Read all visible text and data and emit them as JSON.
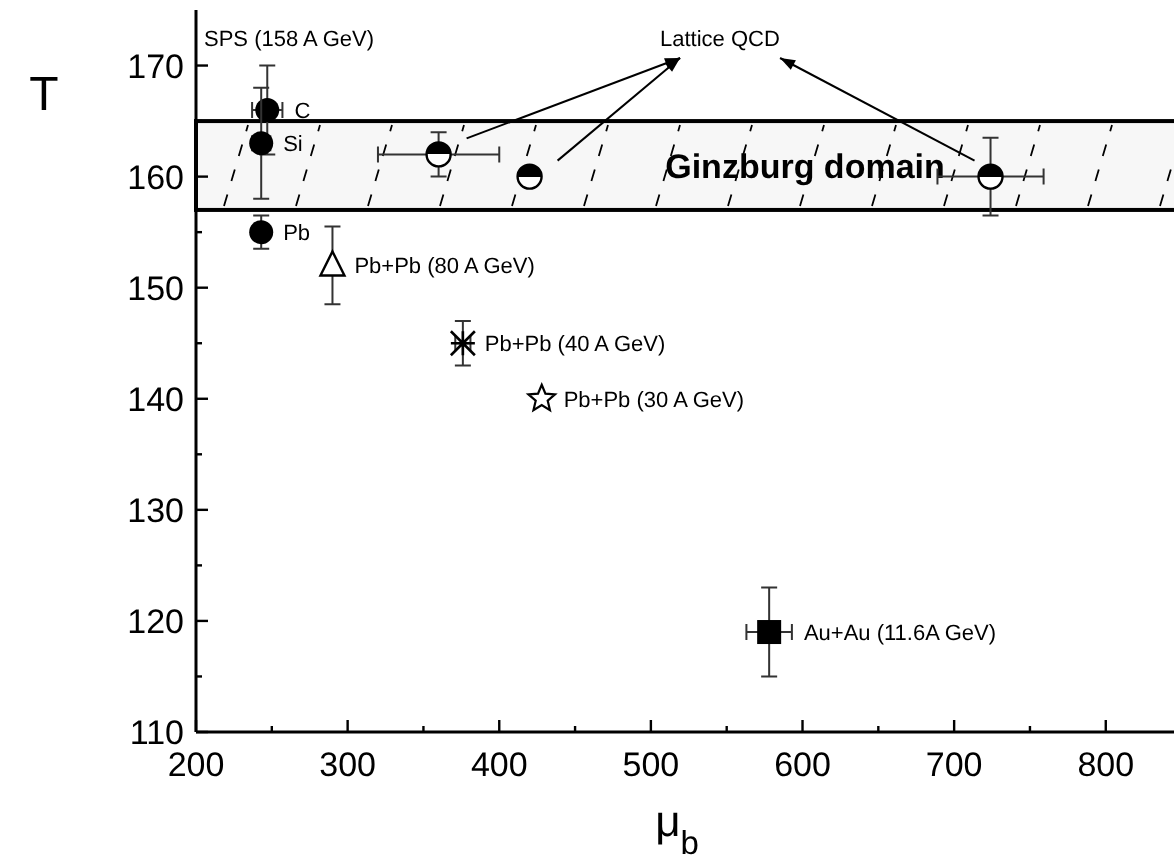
{
  "chart_data": {
    "type": "scatter",
    "xlabel": "μ$_{b}$",
    "ylabel": "T",
    "xlim": [
      200,
      845
    ],
    "ylim": [
      110,
      175
    ],
    "xticks": [
      200,
      {
        "value": 250,
        "label": null
      },
      300,
      {
        "value": 350,
        "label": null
      },
      400,
      {
        "value": 450,
        "label": null
      },
      500,
      {
        "value": 550,
        "label": null
      },
      600,
      {
        "value": 650,
        "label": null
      },
      700,
      {
        "value": 750,
        "label": null
      },
      800
    ],
    "yticks": [
      110,
      {
        "value": 115,
        "label": null
      },
      120,
      {
        "value": 125,
        "label": null
      },
      130,
      {
        "value": 135,
        "label": null
      },
      140,
      {
        "value": 145,
        "label": null
      },
      150,
      {
        "value": 155,
        "label": null
      },
      160,
      {
        "value": 165,
        "label": null
      },
      170
    ],
    "grid": false,
    "bands": [
      {
        "axis": "y",
        "from": 157,
        "to": 165,
        "label": "Ginzburg domain",
        "color": "#000000"
      }
    ],
    "annotations": [
      "SPS (158 A GeV)",
      "Lattice QCD"
    ],
    "series": [
      {
        "name": "C",
        "color": "#000000",
        "marker": "circle",
        "x": [
          247
        ],
        "values": [
          166
        ],
        "errors": [
          4
        ],
        "xerrors": [
          10
        ]
      },
      {
        "name": "Si",
        "color": "#000000",
        "marker": "circle",
        "x": [
          243
        ],
        "values": [
          163
        ],
        "errors": [
          5
        ],
        "xerrors": [
          6
        ]
      },
      {
        "name": "Pb",
        "color": "#000000",
        "marker": "circle",
        "x": [
          243
        ],
        "values": [
          155
        ],
        "errors": [
          1.5
        ]
      },
      {
        "name": "Pb+Pb (80 A GeV)",
        "color": "#000000",
        "marker": "triangle",
        "x": [
          290
        ],
        "values": [
          152
        ],
        "errors": [
          3.5
        ]
      },
      {
        "name": "Pb+Pb (40 A GeV)",
        "color": "#000000",
        "marker": "cross",
        "x": [
          376
        ],
        "values": [
          145
        ],
        "errors": [
          2
        ],
        "xerrors": [
          5
        ]
      },
      {
        "name": "Pb+Pb (30 A GeV)",
        "color": "#000000",
        "marker": "star",
        "x": [
          428
        ],
        "values": [
          140
        ]
      },
      {
        "name": "Au+Au (11.6A GeV)",
        "color": "#000000",
        "marker": "square",
        "x": [
          578
        ],
        "values": [
          119
        ],
        "errors": [
          4
        ],
        "xerrors": [
          15
        ]
      },
      {
        "color": "#000000",
        "marker": "half_circle",
        "x": [
          360,
          420,
          724
        ],
        "values": [
          162,
          160,
          160
        ],
        "errors": [
          2,
          null,
          3.5
        ],
        "xerrors": [
          40,
          null,
          35
        ]
      }
    ]
  }
}
